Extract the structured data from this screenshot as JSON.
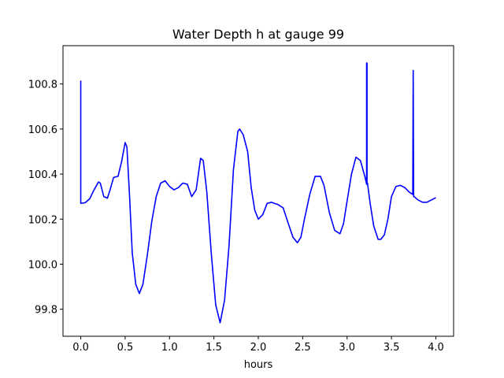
{
  "chart_data": {
    "type": "line",
    "title": "Water Depth h at gauge 99",
    "xlabel": "hours",
    "ylabel": "",
    "xlim": [
      -0.2,
      4.2
    ],
    "ylim": [
      99.68,
      100.97
    ],
    "xticks": [
      0.0,
      0.5,
      1.0,
      1.5,
      2.0,
      2.5,
      3.0,
      3.5,
      4.0
    ],
    "xtick_labels": [
      "0.0",
      "0.5",
      "1.0",
      "1.5",
      "2.0",
      "2.5",
      "3.0",
      "3.5",
      "4.0"
    ],
    "yticks": [
      99.8,
      100.0,
      100.2,
      100.4,
      100.6,
      100.8
    ],
    "ytick_labels": [
      "99.8",
      "100.0",
      "100.2",
      "100.4",
      "100.6",
      "100.8"
    ],
    "grid": false,
    "series": [
      {
        "color": "#0000ff",
        "x": [
          0.0,
          0.0,
          0.0,
          0.05,
          0.1,
          0.15,
          0.2,
          0.22,
          0.26,
          0.3,
          0.33,
          0.37,
          0.42,
          0.46,
          0.5,
          0.52,
          0.55,
          0.58,
          0.62,
          0.66,
          0.7,
          0.75,
          0.8,
          0.85,
          0.9,
          0.95,
          1.0,
          1.05,
          1.1,
          1.15,
          1.2,
          1.25,
          1.3,
          1.35,
          1.38,
          1.42,
          1.47,
          1.52,
          1.57,
          1.62,
          1.67,
          1.72,
          1.77,
          1.79,
          1.83,
          1.88,
          1.92,
          1.96,
          2.0,
          2.05,
          2.1,
          2.15,
          2.18,
          2.22,
          2.28,
          2.33,
          2.39,
          2.44,
          2.48,
          2.52,
          2.58,
          2.64,
          2.7,
          2.74,
          2.8,
          2.86,
          2.92,
          2.96,
          3.0,
          3.05,
          3.1,
          3.15,
          3.2,
          3.22,
          3.22,
          3.225,
          3.225,
          3.23,
          3.26,
          3.3,
          3.35,
          3.38,
          3.42,
          3.46,
          3.5,
          3.55,
          3.6,
          3.65,
          3.7,
          3.74,
          3.745,
          3.745,
          3.75,
          3.755,
          3.8,
          3.85,
          3.9,
          3.95,
          4.0
        ],
        "y": [
          100.815,
          100.27,
          100.27,
          100.273,
          100.29,
          100.33,
          100.365,
          100.36,
          100.3,
          100.293,
          100.33,
          100.385,
          100.39,
          100.455,
          100.54,
          100.52,
          100.3,
          100.05,
          99.91,
          99.87,
          99.91,
          100.04,
          100.19,
          100.3,
          100.36,
          100.37,
          100.345,
          100.33,
          100.34,
          100.36,
          100.355,
          100.3,
          100.33,
          100.47,
          100.46,
          100.32,
          100.05,
          99.82,
          99.74,
          99.84,
          100.08,
          100.42,
          100.59,
          100.6,
          100.575,
          100.5,
          100.34,
          100.24,
          100.2,
          100.22,
          100.27,
          100.275,
          100.27,
          100.265,
          100.25,
          100.19,
          100.12,
          100.095,
          100.12,
          100.2,
          100.31,
          100.39,
          100.39,
          100.35,
          100.23,
          100.15,
          100.135,
          100.18,
          100.28,
          100.4,
          100.475,
          100.46,
          100.39,
          100.355,
          100.893,
          100.893,
          100.36,
          100.36,
          100.27,
          100.17,
          100.11,
          100.11,
          100.13,
          100.2,
          100.3,
          100.345,
          100.35,
          100.34,
          100.32,
          100.31,
          100.86,
          100.86,
          100.3,
          100.3,
          100.285,
          100.275,
          100.275,
          100.285,
          100.295
        ]
      }
    ]
  }
}
